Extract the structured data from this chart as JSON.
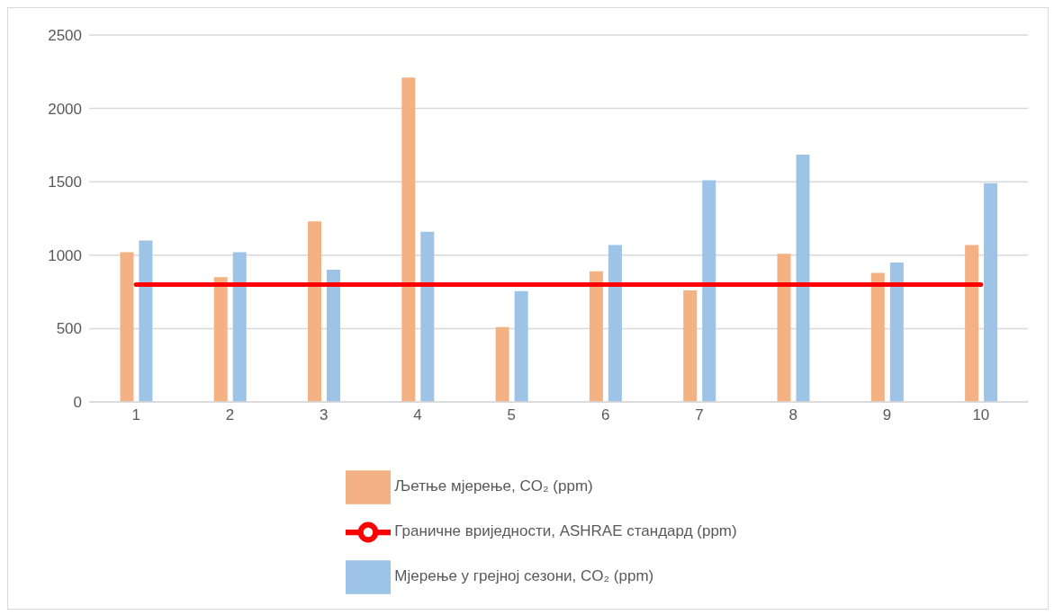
{
  "chart_data": {
    "type": "bar",
    "categories": [
      "1",
      "2",
      "3",
      "4",
      "5",
      "6",
      "7",
      "8",
      "9",
      "10"
    ],
    "series": [
      {
        "name": "Љетње мјерење, CO₂ (ppm)",
        "color": "#f4b183",
        "values": [
          1020,
          850,
          1230,
          2210,
          510,
          890,
          760,
          1010,
          880,
          1070
        ]
      },
      {
        "name": "Мјерење у грејној сезони,  CO₂ (ppm)",
        "color": "#9dc3e6",
        "values": [
          1100,
          1020,
          900,
          1160,
          755,
          1070,
          1510,
          1685,
          950,
          1490
        ]
      },
      {
        "name": "Граничне вриједности, ASHRAE стандард (ppm)",
        "type": "line",
        "color": "#ff0000",
        "values": [
          800,
          800,
          800,
          800,
          800,
          800,
          800,
          800,
          800,
          800
        ]
      }
    ],
    "ylim": [
      0,
      2500
    ],
    "yticks": [
      0,
      500,
      1000,
      1500,
      2000,
      2500
    ],
    "grid": "y",
    "legend": "bottom",
    "marker": "none",
    "line_style": "solid"
  }
}
